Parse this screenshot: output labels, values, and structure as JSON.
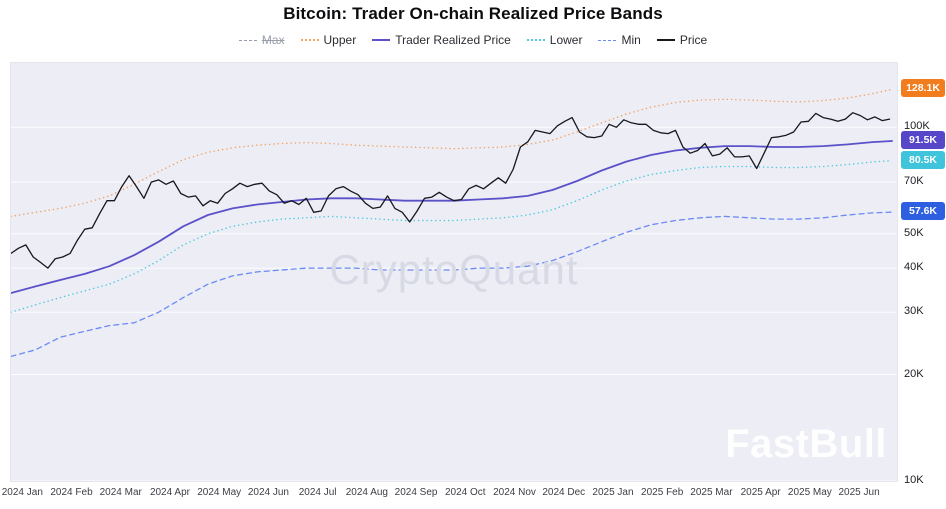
{
  "title": "Bitcoin: Trader On-chain Realized Price Bands",
  "watermarks": {
    "center": "CryptoQuant",
    "corner": "FastBull"
  },
  "legend": [
    {
      "label": "Max",
      "style": "dashed",
      "color": "#9aa0ab",
      "enabled": false
    },
    {
      "label": "Upper",
      "style": "dotted",
      "color": "#f2a468",
      "enabled": true
    },
    {
      "label": "Trader Realized Price",
      "style": "solid",
      "color": "#5b51c9",
      "enabled": true
    },
    {
      "label": "Lower",
      "style": "dotted",
      "color": "#52cadd",
      "enabled": true
    },
    {
      "label": "Min",
      "style": "dashed",
      "color": "#6b8af5",
      "enabled": true
    },
    {
      "label": "Price",
      "style": "solid",
      "color": "#17171e",
      "enabled": true
    }
  ],
  "chart_data": {
    "type": "line",
    "title": "Bitcoin: Trader On-chain Realized Price Bands",
    "y_axis": {
      "scale": "log",
      "unit": "K USD",
      "min": 10,
      "max": 152,
      "ticks": [
        10,
        20,
        30,
        40,
        50,
        70,
        100
      ],
      "tick_labels": [
        "10K",
        "20K",
        "30K",
        "40K",
        "50K",
        "70K",
        "100K"
      ]
    },
    "x_axis": {
      "min": 0,
      "max": 18,
      "labels": [
        "2024 Jan",
        "2024 Feb",
        "2024 Mar",
        "2024 Apr",
        "2024 May",
        "2024 Jun",
        "2024 Jul",
        "2024 Aug",
        "2024 Sep",
        "2024 Oct",
        "2024 Nov",
        "2024 Dec",
        "2025 Jan",
        "2025 Feb",
        "2025 Mar",
        "2025 Apr",
        "2025 May",
        "2025 Jun"
      ]
    },
    "badges": [
      {
        "series": "upper",
        "label": "128.1K",
        "value": 128.1,
        "color": "#f17d1e"
      },
      {
        "series": "trader-realized-price",
        "label": "91.5K",
        "value": 91.5,
        "color": "#5646c8"
      },
      {
        "series": "lower",
        "label": "80.5K",
        "value": 80.5,
        "color": "#3fc4dc"
      },
      {
        "series": "min",
        "label": "57.6K",
        "value": 57.6,
        "color": "#2d5fe0"
      }
    ],
    "series": [
      {
        "name": "Upper",
        "style": "dotted",
        "color": "#f2a468",
        "width": 1.5,
        "points": [
          [
            0,
            56
          ],
          [
            0.5,
            57.5
          ],
          [
            1,
            59
          ],
          [
            1.5,
            61
          ],
          [
            2,
            64
          ],
          [
            2.5,
            69
          ],
          [
            3,
            75
          ],
          [
            3.5,
            81
          ],
          [
            4,
            85
          ],
          [
            4.5,
            87.5
          ],
          [
            5,
            89
          ],
          [
            5.5,
            90
          ],
          [
            6,
            90.5
          ],
          [
            6.5,
            90
          ],
          [
            7,
            89
          ],
          [
            7.5,
            88.5
          ],
          [
            8,
            88
          ],
          [
            8.5,
            87.5
          ],
          [
            9,
            87
          ],
          [
            9.5,
            87.5
          ],
          [
            10,
            88
          ],
          [
            10.5,
            89.5
          ],
          [
            11,
            92
          ],
          [
            11.5,
            97
          ],
          [
            12,
            103
          ],
          [
            12.5,
            109
          ],
          [
            13,
            114
          ],
          [
            13.5,
            117.5
          ],
          [
            14,
            119.5
          ],
          [
            14.5,
            120
          ],
          [
            15,
            119.5
          ],
          [
            15.5,
            118.5
          ],
          [
            16,
            118
          ],
          [
            16.5,
            119
          ],
          [
            17,
            121
          ],
          [
            17.5,
            124.5
          ],
          [
            17.9,
            128.1
          ]
        ]
      },
      {
        "name": "Lower",
        "style": "dotted",
        "color": "#52cadd",
        "width": 1.5,
        "points": [
          [
            0,
            30
          ],
          [
            0.5,
            31.5
          ],
          [
            1,
            33
          ],
          [
            1.5,
            34.5
          ],
          [
            2,
            36
          ],
          [
            2.5,
            38.5
          ],
          [
            3,
            42
          ],
          [
            3.5,
            46.5
          ],
          [
            4,
            50
          ],
          [
            4.5,
            52.5
          ],
          [
            5,
            54
          ],
          [
            5.5,
            55
          ],
          [
            6,
            55.5
          ],
          [
            6.5,
            56
          ],
          [
            7,
            55.5
          ],
          [
            7.5,
            55
          ],
          [
            8,
            54.5
          ],
          [
            8.5,
            54.5
          ],
          [
            9,
            54.5
          ],
          [
            9.5,
            55
          ],
          [
            10,
            55.5
          ],
          [
            10.5,
            56.5
          ],
          [
            11,
            58.5
          ],
          [
            11.5,
            62
          ],
          [
            12,
            66.5
          ],
          [
            12.5,
            70.5
          ],
          [
            13,
            73.5
          ],
          [
            13.5,
            75.5
          ],
          [
            14,
            77
          ],
          [
            14.5,
            77.5
          ],
          [
            15,
            77.5
          ],
          [
            15.5,
            77
          ],
          [
            16,
            77
          ],
          [
            16.5,
            77.5
          ],
          [
            17,
            78.5
          ],
          [
            17.5,
            79.8
          ],
          [
            17.9,
            80.5
          ]
        ]
      },
      {
        "name": "Min",
        "style": "dashed",
        "color": "#6b8af5",
        "width": 1.3,
        "points": [
          [
            0,
            22.5
          ],
          [
            0.5,
            23.5
          ],
          [
            1,
            25.5
          ],
          [
            1.5,
            26.5
          ],
          [
            2,
            27.5
          ],
          [
            2.5,
            28
          ],
          [
            3,
            30
          ],
          [
            3.5,
            33
          ],
          [
            4,
            36
          ],
          [
            4.5,
            38
          ],
          [
            5,
            39
          ],
          [
            5.5,
            39.5
          ],
          [
            6,
            40
          ],
          [
            6.5,
            40
          ],
          [
            7,
            40
          ],
          [
            7.5,
            39.5
          ],
          [
            8,
            39.5
          ],
          [
            8.5,
            39.5
          ],
          [
            9,
            39.5
          ],
          [
            9.5,
            40
          ],
          [
            10,
            40
          ],
          [
            10.5,
            40.5
          ],
          [
            11,
            42
          ],
          [
            11.5,
            44.5
          ],
          [
            12,
            47.5
          ],
          [
            12.5,
            50.5
          ],
          [
            13,
            53
          ],
          [
            13.5,
            54.5
          ],
          [
            14,
            55.5
          ],
          [
            14.5,
            56
          ],
          [
            15,
            55.5
          ],
          [
            15.5,
            55
          ],
          [
            16,
            55
          ],
          [
            16.5,
            55.5
          ],
          [
            17,
            56.5
          ],
          [
            17.5,
            57.3
          ],
          [
            17.9,
            57.6
          ]
        ]
      },
      {
        "name": "Trader Realized Price",
        "style": "solid",
        "color": "#5b51c9",
        "width": 1.8,
        "points": [
          [
            0,
            34
          ],
          [
            0.5,
            35.5
          ],
          [
            1,
            37
          ],
          [
            1.5,
            38.5
          ],
          [
            2,
            40.5
          ],
          [
            2.5,
            43.5
          ],
          [
            3,
            47.5
          ],
          [
            3.5,
            52.5
          ],
          [
            4,
            56.5
          ],
          [
            4.5,
            59
          ],
          [
            5,
            60.5
          ],
          [
            5.5,
            61.5
          ],
          [
            6,
            62.5
          ],
          [
            6.5,
            63
          ],
          [
            7,
            63
          ],
          [
            7.5,
            62.5
          ],
          [
            8,
            62
          ],
          [
            8.5,
            62
          ],
          [
            9,
            62
          ],
          [
            9.5,
            62.5
          ],
          [
            10,
            63
          ],
          [
            10.5,
            64
          ],
          [
            11,
            66.5
          ],
          [
            11.5,
            70.5
          ],
          [
            12,
            75.5
          ],
          [
            12.5,
            80
          ],
          [
            13,
            83.5
          ],
          [
            13.5,
            86
          ],
          [
            14,
            87.5
          ],
          [
            14.5,
            88.5
          ],
          [
            15,
            88.5
          ],
          [
            15.5,
            88
          ],
          [
            16,
            88
          ],
          [
            16.5,
            88.5
          ],
          [
            17,
            89.5
          ],
          [
            17.5,
            90.8
          ],
          [
            17.9,
            91.5
          ]
        ]
      },
      {
        "name": "Price",
        "style": "solid",
        "color": "#17171e",
        "width": 1.3,
        "points": [
          [
            0,
            44
          ],
          [
            0.15,
            45.5
          ],
          [
            0.3,
            46.5
          ],
          [
            0.45,
            43
          ],
          [
            0.6,
            41.5
          ],
          [
            0.75,
            40
          ],
          [
            0.9,
            42.5
          ],
          [
            1.05,
            43
          ],
          [
            1.2,
            44
          ],
          [
            1.35,
            48
          ],
          [
            1.5,
            51.5
          ],
          [
            1.65,
            52
          ],
          [
            1.8,
            57
          ],
          [
            1.95,
            62
          ],
          [
            2.1,
            62
          ],
          [
            2.25,
            68
          ],
          [
            2.4,
            73
          ],
          [
            2.55,
            68
          ],
          [
            2.7,
            63
          ],
          [
            2.85,
            70
          ],
          [
            3,
            71
          ],
          [
            3.15,
            69
          ],
          [
            3.3,
            70.5
          ],
          [
            3.45,
            65
          ],
          [
            3.6,
            63.5
          ],
          [
            3.75,
            64
          ],
          [
            3.9,
            60
          ],
          [
            4.05,
            62
          ],
          [
            4.2,
            61
          ],
          [
            4.35,
            65
          ],
          [
            4.5,
            67
          ],
          [
            4.65,
            69.5
          ],
          [
            4.8,
            68
          ],
          [
            4.95,
            69
          ],
          [
            5.1,
            69.5
          ],
          [
            5.25,
            66
          ],
          [
            5.4,
            64.5
          ],
          [
            5.55,
            61
          ],
          [
            5.7,
            62
          ],
          [
            5.85,
            60.5
          ],
          [
            6,
            63
          ],
          [
            6.15,
            57.5
          ],
          [
            6.3,
            58
          ],
          [
            6.45,
            64
          ],
          [
            6.6,
            67
          ],
          [
            6.75,
            68
          ],
          [
            6.9,
            66
          ],
          [
            7.05,
            64.5
          ],
          [
            7.2,
            61
          ],
          [
            7.35,
            59
          ],
          [
            7.5,
            59.5
          ],
          [
            7.65,
            64
          ],
          [
            7.8,
            59
          ],
          [
            7.95,
            57.5
          ],
          [
            8.1,
            54
          ],
          [
            8.25,
            58
          ],
          [
            8.4,
            63
          ],
          [
            8.55,
            63.5
          ],
          [
            8.7,
            65.5
          ],
          [
            8.85,
            63.5
          ],
          [
            9,
            62
          ],
          [
            9.15,
            62.5
          ],
          [
            9.3,
            67
          ],
          [
            9.45,
            68.5
          ],
          [
            9.6,
            67
          ],
          [
            9.75,
            69.5
          ],
          [
            9.9,
            72
          ],
          [
            10.05,
            69.5
          ],
          [
            10.2,
            76
          ],
          [
            10.35,
            88
          ],
          [
            10.5,
            91
          ],
          [
            10.65,
            98
          ],
          [
            10.8,
            97
          ],
          [
            10.95,
            96
          ],
          [
            11.1,
            101
          ],
          [
            11.25,
            104
          ],
          [
            11.4,
            106.5
          ],
          [
            11.55,
            97
          ],
          [
            11.7,
            94
          ],
          [
            11.85,
            93.5
          ],
          [
            12,
            94.5
          ],
          [
            12.15,
            102
          ],
          [
            12.3,
            100
          ],
          [
            12.45,
            105
          ],
          [
            12.6,
            103
          ],
          [
            12.75,
            102
          ],
          [
            12.9,
            102
          ],
          [
            13.05,
            98
          ],
          [
            13.2,
            96.5
          ],
          [
            13.35,
            96
          ],
          [
            13.5,
            98
          ],
          [
            13.65,
            88
          ],
          [
            13.8,
            84.5
          ],
          [
            13.95,
            86
          ],
          [
            14.1,
            90
          ],
          [
            14.25,
            83
          ],
          [
            14.4,
            84
          ],
          [
            14.55,
            87.5
          ],
          [
            14.7,
            82.5
          ],
          [
            14.85,
            82.5
          ],
          [
            15,
            83
          ],
          [
            15.15,
            76.5
          ],
          [
            15.3,
            84.5
          ],
          [
            15.45,
            93.5
          ],
          [
            15.6,
            94
          ],
          [
            15.75,
            95
          ],
          [
            15.9,
            97
          ],
          [
            16.05,
            103.5
          ],
          [
            16.2,
            104
          ],
          [
            16.35,
            109.5
          ],
          [
            16.5,
            106.5
          ],
          [
            16.65,
            105.5
          ],
          [
            16.8,
            104
          ],
          [
            16.95,
            105.5
          ],
          [
            17.1,
            110
          ],
          [
            17.25,
            108
          ],
          [
            17.4,
            105
          ],
          [
            17.55,
            107
          ],
          [
            17.7,
            104.5
          ],
          [
            17.85,
            105.5
          ]
        ]
      }
    ]
  }
}
